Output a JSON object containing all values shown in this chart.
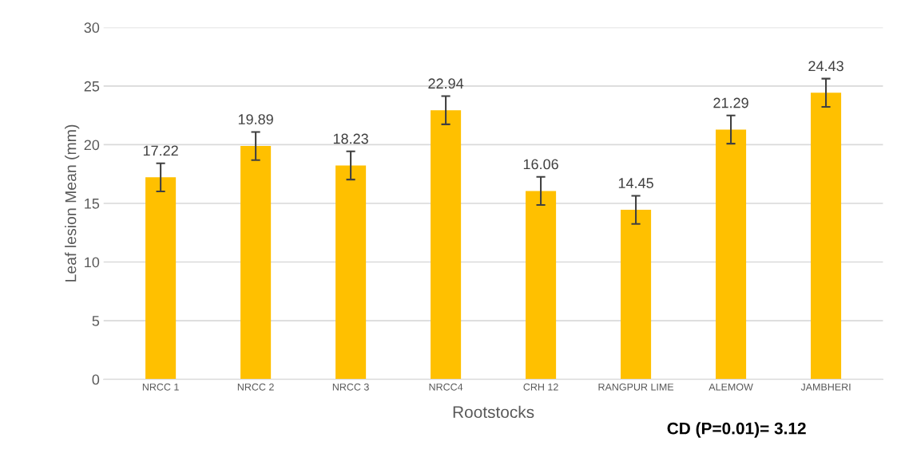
{
  "chart_data": {
    "type": "bar",
    "xlabel": "Rootstocks",
    "ylabel": "Leaf lesion Mean (mm)",
    "categories": [
      "NRCC 1",
      "NRCC 2",
      "NRCC 3",
      "NRCC4",
      "CRH 12",
      "RANGPUR LIME",
      "ALEMOW",
      "JAMBHERI"
    ],
    "values": [
      17.22,
      19.89,
      18.23,
      22.94,
      16.06,
      14.45,
      21.29,
      24.43
    ],
    "errors": [
      1.2,
      1.2,
      1.2,
      1.2,
      1.2,
      1.2,
      1.2,
      1.2
    ],
    "color": "#ffc000",
    "ylim": [
      0,
      30
    ],
    "yticks": [
      0,
      5,
      10,
      15,
      20,
      25,
      30
    ],
    "grid": "y",
    "data_labels": true,
    "annotations": [
      "CD (P=0.01)= 3.12"
    ]
  }
}
